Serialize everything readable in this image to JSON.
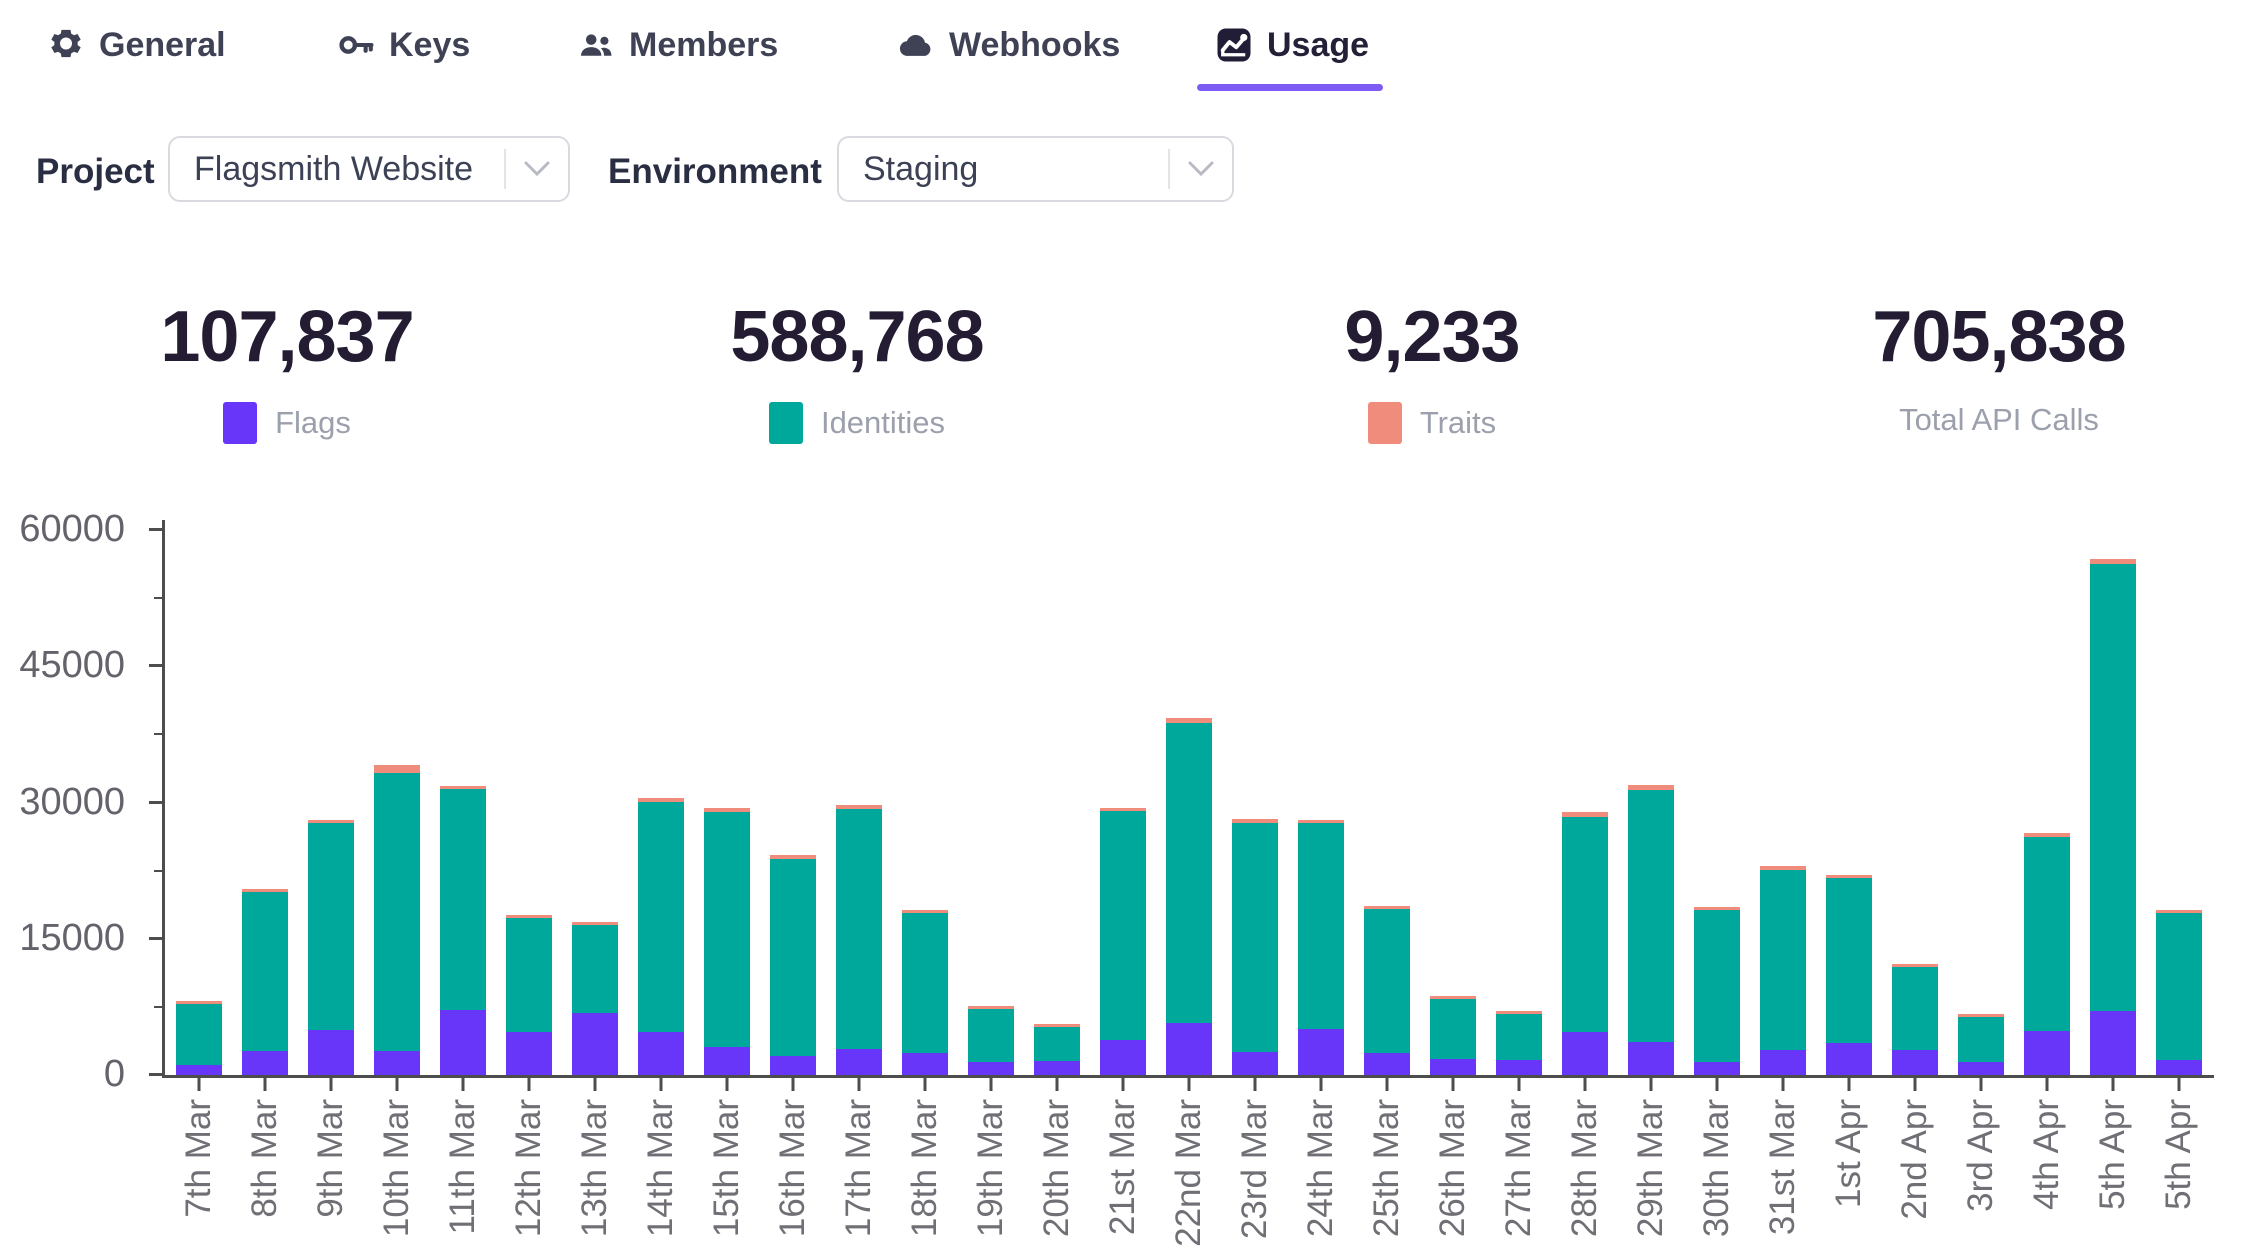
{
  "tabs": [
    {
      "label": "General",
      "icon": "gear",
      "active": false
    },
    {
      "label": "Keys",
      "icon": "key",
      "active": false
    },
    {
      "label": "Members",
      "icon": "users",
      "active": false
    },
    {
      "label": "Webhooks",
      "icon": "cloud",
      "active": false
    },
    {
      "label": "Usage",
      "icon": "chart",
      "active": true
    }
  ],
  "controls": {
    "project_label": "Project",
    "project_value": "Flagsmith Website",
    "environment_label": "Environment",
    "environment_value": "Staging"
  },
  "stats": [
    {
      "value": "107,837",
      "label": "Flags",
      "color": "#6836f8"
    },
    {
      "value": "588,768",
      "label": "Identities",
      "color": "#00a79b"
    },
    {
      "value": "9,233",
      "label": "Traits",
      "color": "#ef8c7c"
    },
    {
      "value": "705,838",
      "label": "Total API Calls",
      "color": null
    }
  ],
  "chart_data": {
    "type": "bar",
    "stacked": true,
    "title": "",
    "xlabel": "",
    "ylabel": "",
    "ylim": [
      0,
      60000
    ],
    "yticks": [
      0,
      15000,
      30000,
      45000,
      60000
    ],
    "grid": false,
    "legend_position": "above-in-stats",
    "categories": [
      "7th Mar",
      "8th Mar",
      "9th Mar",
      "10th Mar",
      "11th Mar",
      "12th Mar",
      "13th Mar",
      "14th Mar",
      "15th Mar",
      "16th Mar",
      "17th Mar",
      "18th Mar",
      "19th Mar",
      "20th Mar",
      "21st Mar",
      "22nd Mar",
      "23rd Mar",
      "24th Mar",
      "25th Mar",
      "26th Mar",
      "27th Mar",
      "28th Mar",
      "29th Mar",
      "30th Mar",
      "31st Mar",
      "1st Apr",
      "2nd Apr",
      "3rd Apr",
      "4th Apr",
      "5th Apr",
      "5th Apr"
    ],
    "series": [
      {
        "name": "Flags",
        "color": "#6836f8",
        "values": [
          1100,
          2600,
          5000,
          2600,
          7200,
          4700,
          6800,
          4700,
          3100,
          2100,
          2900,
          2400,
          1450,
          1580,
          3900,
          5750,
          2500,
          5100,
          2400,
          1800,
          1600,
          4700,
          3650,
          1450,
          2800,
          3550,
          2700,
          1380,
          4800,
          7000,
          1700
        ]
      },
      {
        "name": "Identities",
        "color": "#00a79b",
        "values": [
          6700,
          17600,
          22800,
          30600,
          24300,
          12600,
          9700,
          25400,
          25900,
          21700,
          26350,
          15400,
          5770,
          3760,
          25170,
          32970,
          25280,
          22600,
          15900,
          6600,
          5120,
          23760,
          27710,
          16720,
          19780,
          18120,
          9220,
          5060,
          21380,
          49220,
          16150
        ]
      },
      {
        "name": "Traits",
        "color": "#ef8c7c",
        "values": [
          100,
          250,
          250,
          900,
          350,
          100,
          100,
          400,
          400,
          400,
          450,
          100,
          80,
          60,
          330,
          580,
          420,
          400,
          200,
          100,
          80,
          540,
          540,
          330,
          420,
          330,
          80,
          60,
          420,
          580,
          250
        ]
      }
    ]
  }
}
